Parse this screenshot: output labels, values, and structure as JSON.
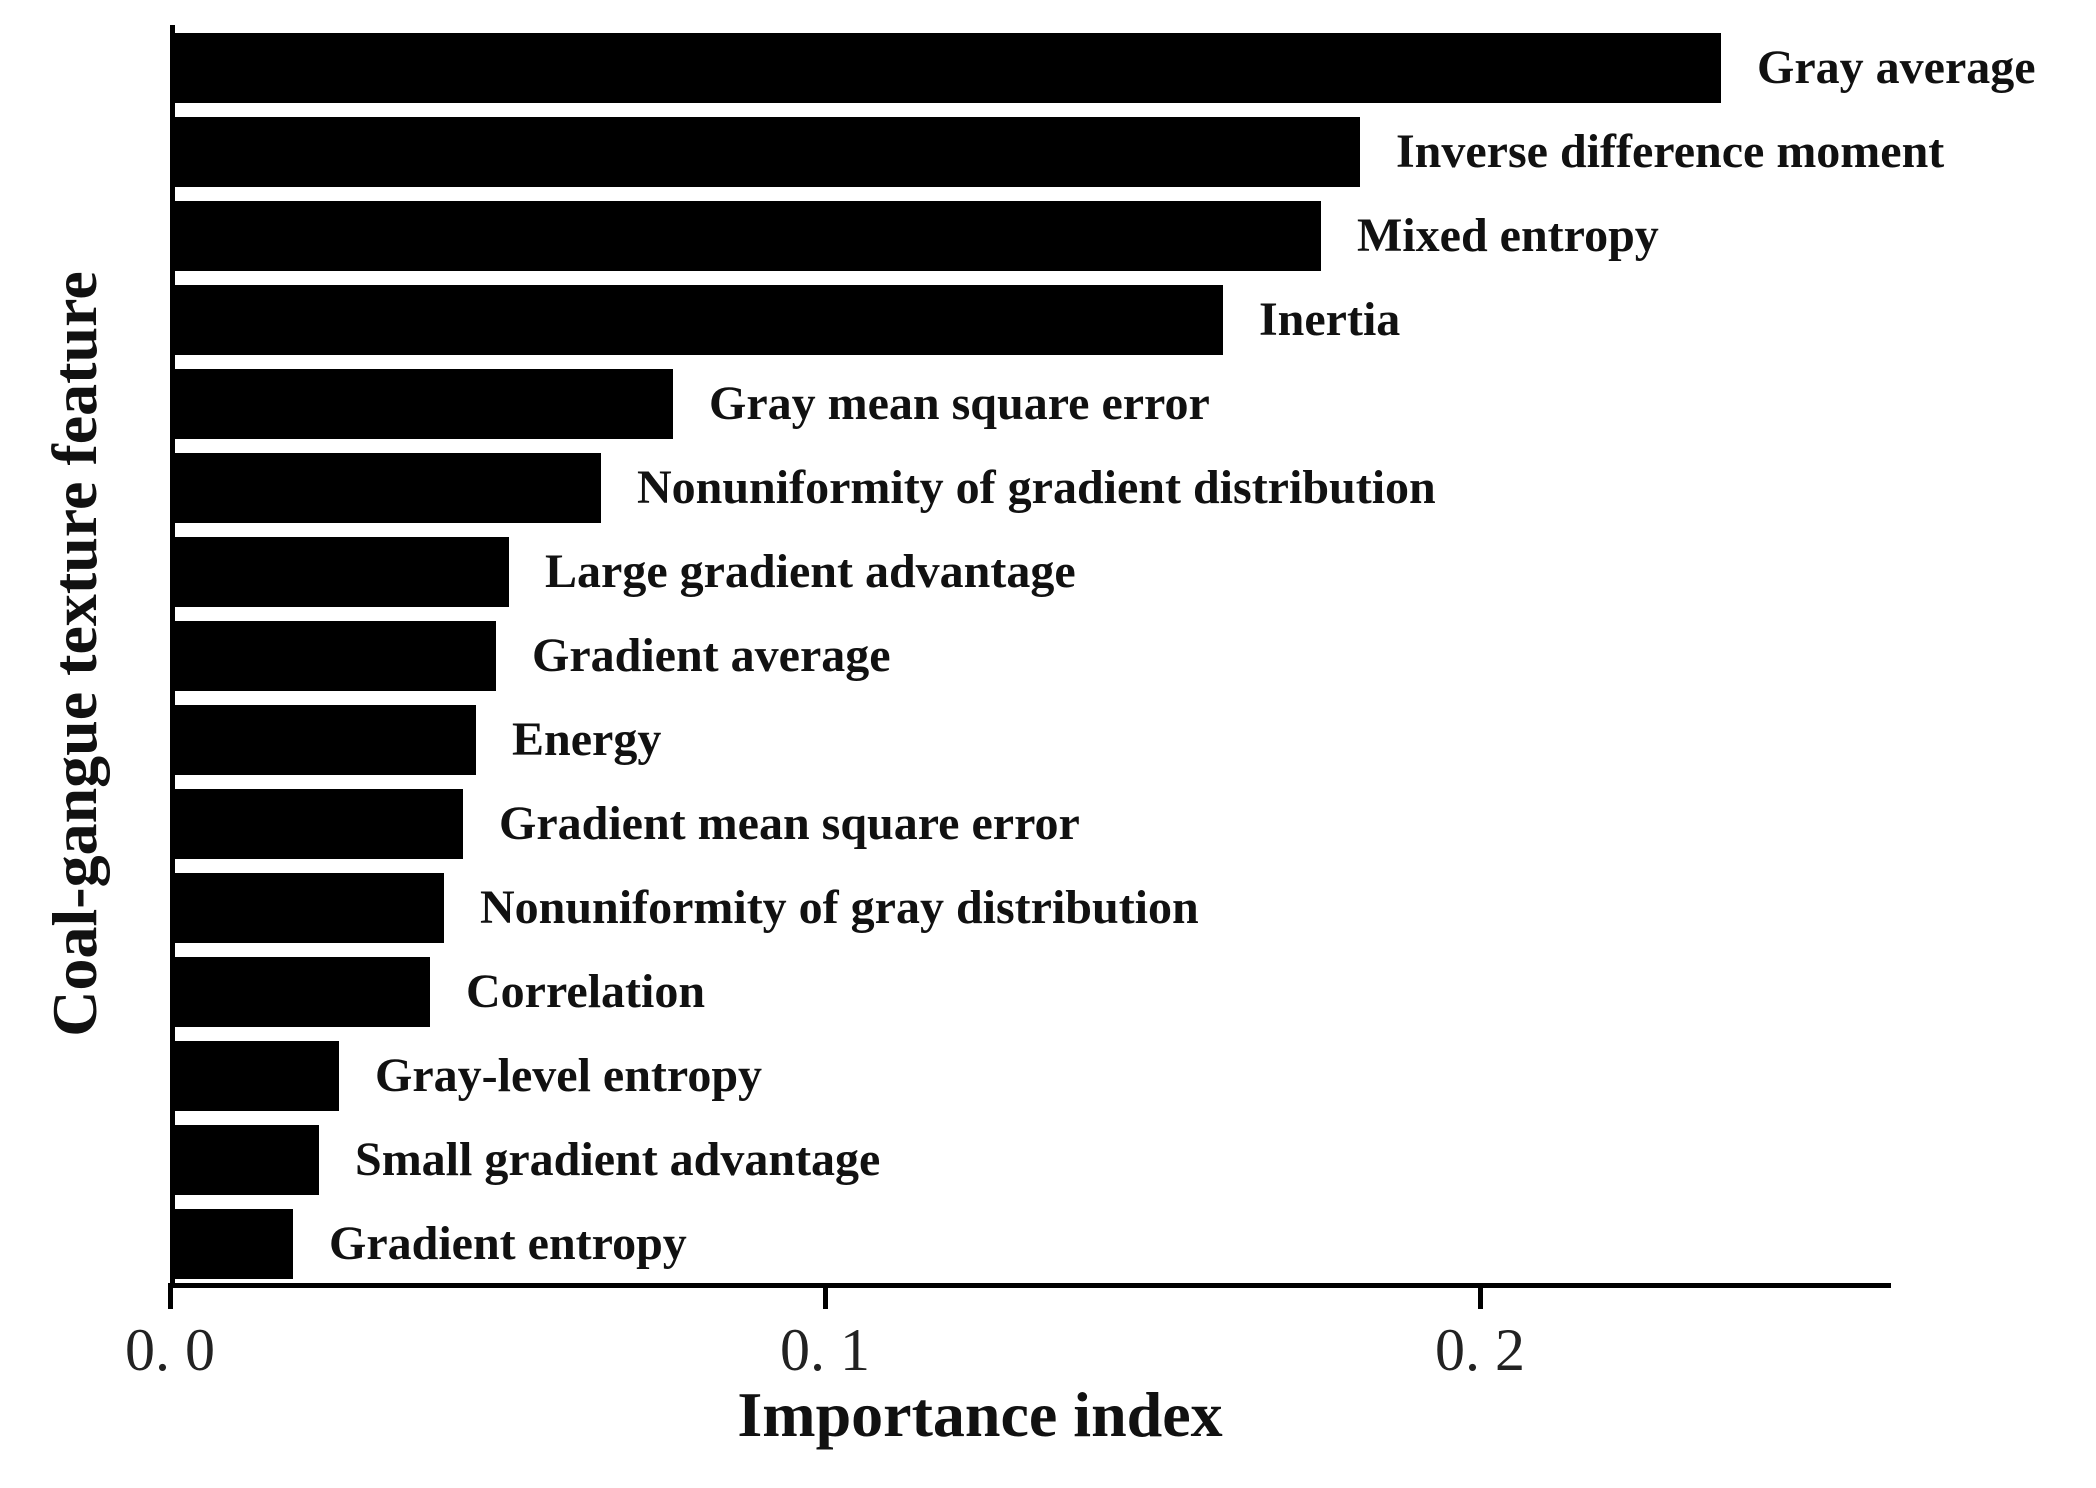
{
  "figure": {
    "background": "#ffffff",
    "bar_color": "#000000",
    "axis_color": "#000000",
    "text_color": "#111111"
  },
  "chart_data": {
    "type": "bar",
    "orientation": "horizontal",
    "title": "",
    "xlabel": "Importance index",
    "ylabel": "Coal-gangue texture feature",
    "categories": [
      "Gray average",
      "Inverse difference moment",
      "Mixed entropy",
      "Inertia",
      "Gray mean square error",
      "Nonuniformity of gradient distribution",
      "Large gradient advantage",
      "Gradient average",
      "Energy",
      "Gradient mean square error",
      "Nonuniformity of gray distribution",
      "Correlation",
      "Gray-level entropy",
      "Small gradient advantage",
      "Gradient entropy"
    ],
    "values": [
      0.236,
      0.181,
      0.175,
      0.16,
      0.076,
      0.065,
      0.051,
      0.049,
      0.046,
      0.044,
      0.041,
      0.039,
      0.025,
      0.022,
      0.018
    ],
    "xlim": [
      0,
      0.262
    ],
    "xticks": [
      {
        "value": 0.0,
        "label": "0. 0"
      },
      {
        "value": 0.1,
        "label": "0. 1"
      },
      {
        "value": 0.2,
        "label": "0. 2"
      }
    ],
    "grid": false,
    "legend": "none"
  }
}
